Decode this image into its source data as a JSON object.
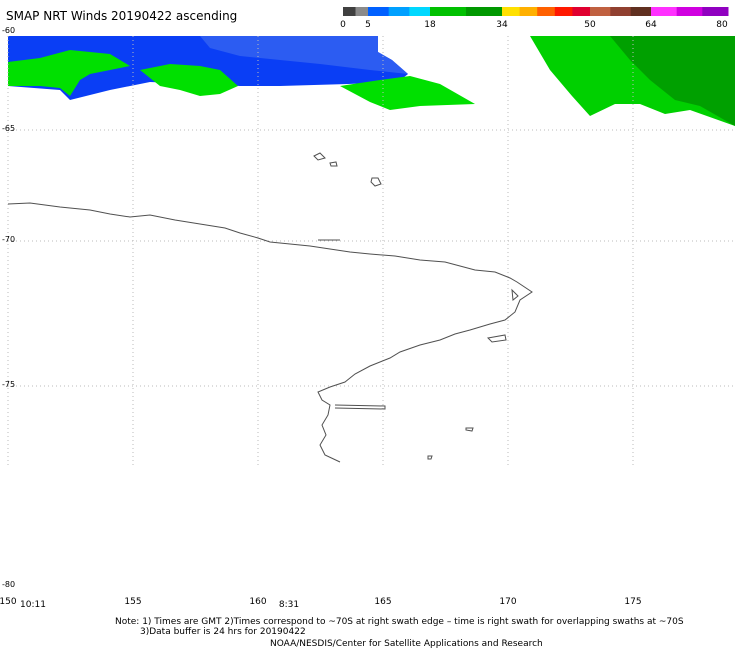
{
  "title": "SMAP NRT Winds 20190422 ascending",
  "colorbar": {
    "labels": [
      "0",
      "5",
      "18",
      "34",
      "50",
      "64",
      "80"
    ],
    "colors": [
      "#7f7f7f",
      "#0060ff",
      "#00a8ff",
      "#00c8ff",
      "#00d000",
      "#00b000",
      "#009000",
      "#ffe000",
      "#ffa000",
      "#ff5000",
      "#ff0040",
      "#e00000",
      "#a05030",
      "#804020",
      "#ff30ff",
      "#c000ff",
      "#8000c0"
    ]
  },
  "latitude_labels": [
    "-60",
    "-65",
    "-70",
    "-75",
    "-80"
  ],
  "longitude_labels": [
    "150",
    "155",
    "160",
    "165",
    "170",
    "175"
  ],
  "time_labels": [
    "10:11",
    "8:31"
  ],
  "notes": {
    "line1": "Note: 1) Times are GMT 2)Times correspond to ~70S at right swath edge – time is right swath for overlapping swaths at ~70S",
    "line2": "3)Data buffer is 24 hrs for 20190422",
    "line3": "NOAA/NESDIS/Center for Satellite Applications and Research"
  },
  "wind_colors": {
    "low": "#0a3ef5",
    "mid": "#2a5cf0",
    "green": "#00e000",
    "dark_green": "#00a000"
  }
}
